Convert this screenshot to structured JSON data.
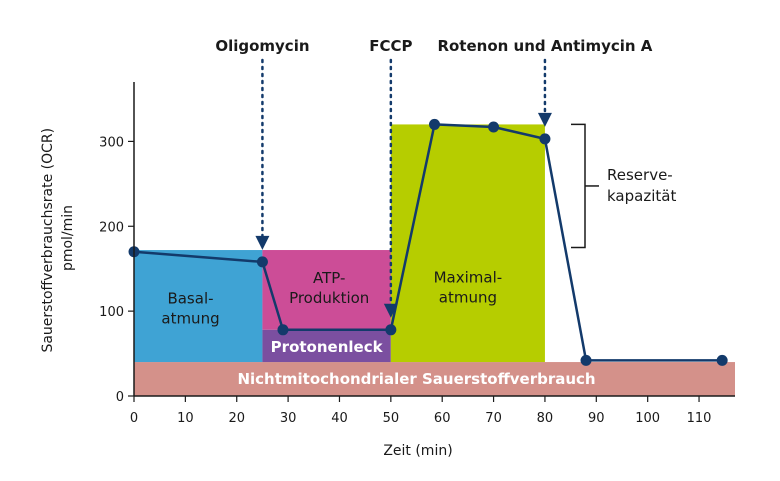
{
  "chart_data": {
    "type": "line",
    "xlabel": "Zeit (min)",
    "ylabel": [
      "Sauerstoffverbrauchsrate (OCR)",
      "pmol/min"
    ],
    "xlim": [
      0,
      117
    ],
    "ylim": [
      0,
      370
    ],
    "x_ticks": [
      0,
      10,
      20,
      30,
      40,
      50,
      60,
      70,
      80,
      90,
      100,
      110
    ],
    "y_ticks": [
      0,
      100,
      200,
      300
    ],
    "grid": false,
    "series": [
      {
        "color": "#133a6b",
        "x": [
          0,
          25,
          29,
          50,
          58.5,
          70,
          80,
          88,
          114.5
        ],
        "y": [
          170,
          158,
          78,
          78,
          320,
          317,
          303,
          42,
          42
        ]
      }
    ],
    "injections": [
      {
        "label": "Oligomycin",
        "x": 25
      },
      {
        "label": "FCCP",
        "x": 50
      },
      {
        "label": "Rotenon und Antimycin A",
        "x": 80
      }
    ],
    "regions": [
      {
        "key": "nonmito",
        "lines": [
          "Nichtmitochondrialer Sauerstoffverbrauch"
        ],
        "x0": 0,
        "x1": 117,
        "y0": 0,
        "y1": 40,
        "color": "#d4918a",
        "label_x": 55,
        "label_y": 20,
        "light": true
      },
      {
        "key": "basal",
        "lines": [
          "Basal-",
          "atmung"
        ],
        "x0": 0,
        "x1": 25,
        "y0": 40,
        "y1": 172,
        "color": "#3fa3d4",
        "label_x": 11,
        "label_y": 103,
        "light": false
      },
      {
        "key": "atp",
        "lines": [
          "ATP-",
          "Produktion"
        ],
        "x0": 25,
        "x1": 50,
        "y0": 78,
        "y1": 172,
        "color": "#cc4d97",
        "label_x": 38,
        "label_y": 127,
        "light": false
      },
      {
        "key": "leak",
        "lines": [
          "Protonenleck"
        ],
        "x0": 25,
        "x1": 50,
        "y0": 40,
        "y1": 78,
        "color": "#7b4fa0",
        "label_x": 37.5,
        "label_y": 58,
        "light": true
      },
      {
        "key": "max",
        "lines": [
          "Maximal-",
          "atmung"
        ],
        "x0": 50,
        "x1": 80,
        "y0": 40,
        "y1": 320,
        "color": "#b6cd00",
        "label_x": 65,
        "label_y": 128,
        "light": false
      }
    ],
    "reserve": {
      "lines": [
        "Reserve-",
        "kapazität"
      ],
      "y0": 175,
      "y1": 320
    }
  }
}
